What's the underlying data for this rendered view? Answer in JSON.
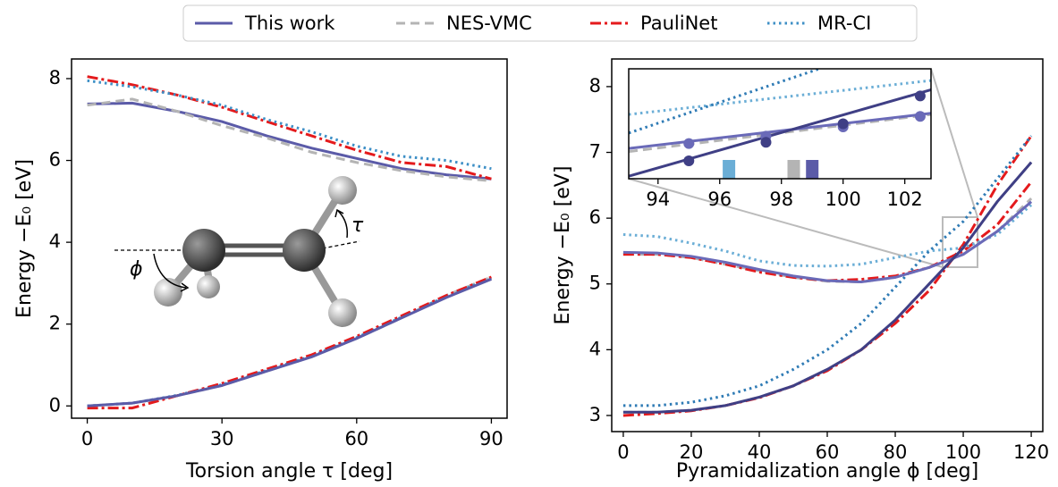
{
  "chart_data": [
    {
      "type": "line",
      "xlabel": "Torsion angle τ [deg]",
      "ylabel": "Energy −E₀ [eV]",
      "annotations": [
        "τ",
        "ϕ"
      ],
      "x": [
        0,
        10,
        20,
        30,
        40,
        50,
        60,
        70,
        80,
        90
      ],
      "xlim": [
        -3.5,
        93.5
      ],
      "xticks": [
        0,
        30,
        60,
        90
      ],
      "ylim": [
        -0.3,
        8.48
      ],
      "yticks": [
        0,
        2,
        4,
        6,
        8
      ],
      "series": [
        {
          "name": "This work",
          "color": "#5b5ba8",
          "dash": "solid",
          "values": [
            7.38,
            7.4,
            7.2,
            6.95,
            6.6,
            6.3,
            6.05,
            5.8,
            5.65,
            5.55
          ]
        },
        {
          "name": "NES-VMC",
          "color": "#b4b4b4",
          "dash": "dashed",
          "values": [
            7.35,
            7.5,
            7.2,
            6.85,
            6.55,
            6.2,
            5.95,
            5.75,
            5.6,
            5.5
          ]
        },
        {
          "name": "PauliNet",
          "color": "#e41a1c",
          "dash": "dashdot",
          "values": [
            8.05,
            7.85,
            7.6,
            7.3,
            6.95,
            6.6,
            6.25,
            5.95,
            5.85,
            5.55
          ]
        },
        {
          "name": "MR-CI",
          "color": "#3d8fc6",
          "dash": "dotted",
          "values": [
            7.95,
            7.8,
            7.6,
            7.35,
            7.0,
            6.7,
            6.35,
            6.1,
            6.0,
            5.8
          ]
        },
        {
          "color": "#b4b4b4",
          "dash": "dashed",
          "values": [
            0,
            0.07,
            0.25,
            0.5,
            0.85,
            1.2,
            1.65,
            2.15,
            2.7,
            3.15
          ]
        },
        {
          "color": "#3d8fc6",
          "dash": "dotted",
          "values": [
            0,
            0.07,
            0.26,
            0.52,
            0.87,
            1.22,
            1.67,
            2.17,
            2.68,
            3.12
          ]
        },
        {
          "color": "#e41a1c",
          "dash": "dashdot",
          "values": [
            -0.05,
            -0.05,
            0.25,
            0.55,
            0.9,
            1.25,
            1.7,
            2.2,
            2.7,
            3.15
          ]
        },
        {
          "color": "#5b5ba8",
          "dash": "solid",
          "values": [
            0,
            0.07,
            0.25,
            0.5,
            0.85,
            1.2,
            1.65,
            2.15,
            2.65,
            3.1
          ]
        }
      ]
    },
    {
      "type": "line",
      "xlabel": "Pyramidalization angle ϕ [deg]",
      "ylabel": "Energy −E₀ [eV]",
      "x": [
        0,
        10,
        20,
        30,
        40,
        50,
        60,
        70,
        80,
        90,
        100,
        110,
        120
      ],
      "xlim": [
        -3.4,
        123.4
      ],
      "xticks": [
        0,
        20,
        40,
        60,
        80,
        100,
        120
      ],
      "ylim": [
        2.755,
        8.42
      ],
      "yticks": [
        3,
        4,
        5,
        6,
        7,
        8
      ],
      "series": [
        {
          "color": "#b4b4b4",
          "dash": "dashed",
          "values": [
            5.45,
            5.45,
            5.4,
            5.3,
            5.2,
            5.1,
            5.04,
            5.03,
            5.1,
            5.25,
            5.45,
            5.8,
            6.3
          ]
        },
        {
          "color": "#b4b4b4",
          "dash": "dashed",
          "values": [
            3.05,
            3.05,
            3.08,
            3.15,
            3.28,
            3.45,
            3.7,
            4.0,
            4.45,
            5.0,
            5.55,
            6.25,
            6.85
          ]
        },
        {
          "color": "#e41a1c",
          "dash": "dashdot",
          "values": [
            5.45,
            5.45,
            5.4,
            5.3,
            5.18,
            5.1,
            5.05,
            5.07,
            5.12,
            5.25,
            5.5,
            5.9,
            6.55
          ]
        },
        {
          "color": "#e41a1c",
          "dash": "dashdot",
          "values": [
            3.0,
            3.03,
            3.07,
            3.15,
            3.27,
            3.45,
            3.68,
            4.0,
            4.4,
            4.9,
            5.6,
            6.5,
            7.25
          ]
        },
        {
          "color": "#6baed6",
          "dash": "dotted",
          "values": [
            5.75,
            5.72,
            5.62,
            5.5,
            5.35,
            5.28,
            5.27,
            5.3,
            5.4,
            5.5,
            5.55,
            5.75,
            6.2
          ]
        },
        {
          "color": "#2f7bb5",
          "dash": "dotted",
          "values": [
            3.15,
            3.15,
            3.2,
            3.3,
            3.45,
            3.7,
            4.0,
            4.4,
            4.95,
            5.5,
            5.95,
            6.6,
            7.25
          ]
        },
        {
          "color": "#6a6ab8",
          "dash": "solid",
          "values": [
            5.48,
            5.47,
            5.42,
            5.33,
            5.22,
            5.12,
            5.05,
            5.03,
            5.1,
            5.25,
            5.45,
            5.8,
            6.25
          ]
        },
        {
          "color": "#3f3f85",
          "dash": "solid",
          "values": [
            3.05,
            3.05,
            3.08,
            3.15,
            3.28,
            3.45,
            3.7,
            4.0,
            4.45,
            5.0,
            5.55,
            6.25,
            6.85
          ]
        }
      ]
    },
    {
      "type": "line",
      "x": [
        93.05,
        102.85
      ],
      "xlim": [
        93.05,
        102.85
      ],
      "xticks": [
        94,
        96,
        98,
        100,
        102
      ],
      "ylim": [
        6.51,
        8.29
      ],
      "series": [
        {
          "color": "#6baed6",
          "dash": "dotted",
          "values": [
            7.55,
            8.1
          ]
        },
        {
          "color": "#2f7bb5",
          "dash": "dotted",
          "values": [
            7.25,
            8.9
          ]
        },
        {
          "color": "#b4b4b4",
          "dash": "dashed",
          "values": [
            6.95,
            7.55
          ]
        },
        {
          "color": "#6a6ab8",
          "dash": "solid",
          "values": [
            7.0,
            7.57
          ]
        },
        {
          "color": "#3f3f85",
          "dash": "solid",
          "values": [
            6.55,
            7.95
          ]
        }
      ],
      "points": {
        "x": [
          95,
          97.5,
          100,
          102.5
        ],
        "series": [
          {
            "color": "#6a6ab8",
            "values": [
              7.08,
              7.2,
              7.35,
              7.52
            ],
            "errors": [
              0.07,
              0.07,
              0.07,
              0.07
            ]
          },
          {
            "color": "#3f3f85",
            "values": [
              6.8,
              7.1,
              7.4,
              7.85
            ],
            "errors": [
              0.07,
              0.07,
              0.07,
              0.07
            ]
          }
        ]
      },
      "crossings": {
        "x": [
          96.3,
          98.4,
          99.0
        ],
        "colors": [
          "#6baed6",
          "#b4b4b4",
          "#5b5ba8"
        ]
      }
    }
  ]
}
